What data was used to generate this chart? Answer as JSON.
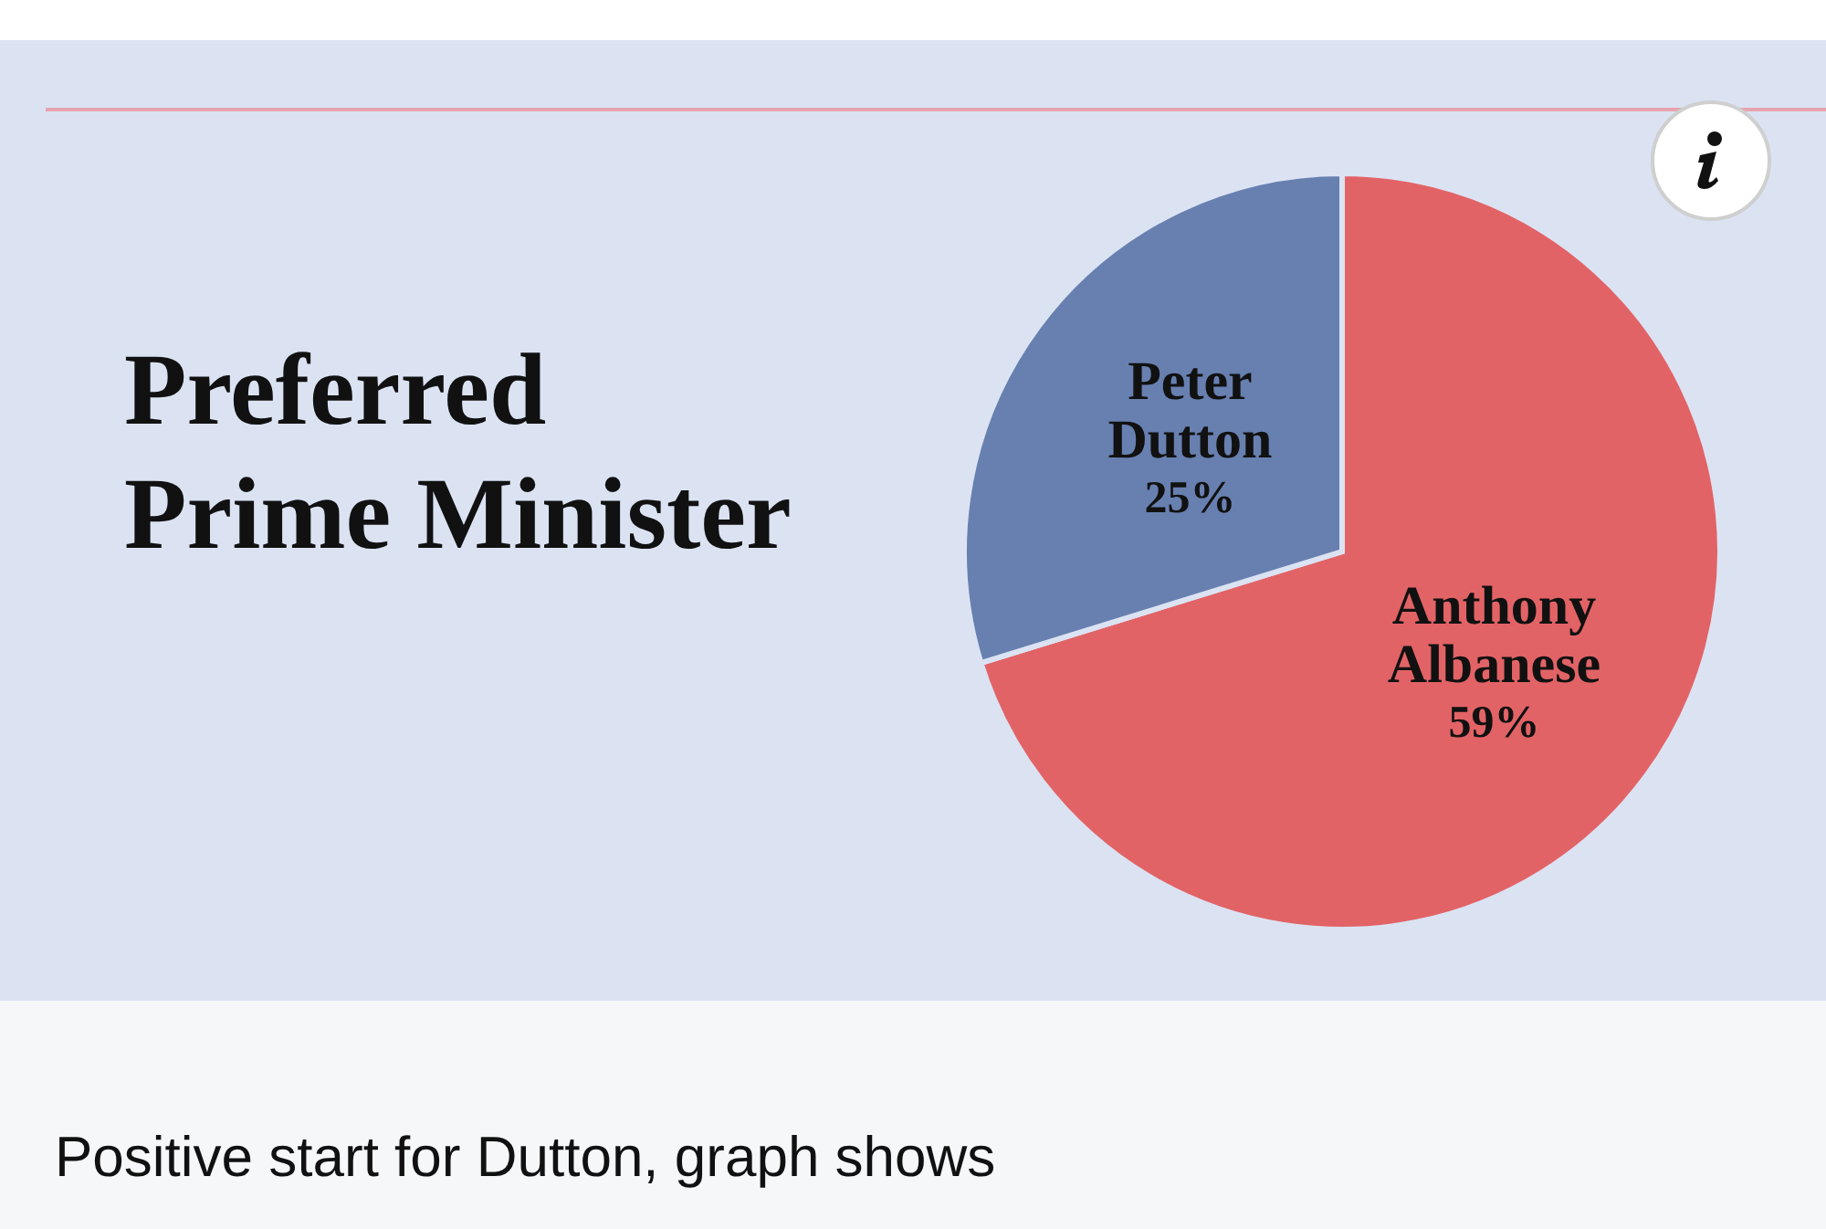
{
  "chart_data": {
    "type": "pie",
    "title": "Preferred Prime Minister",
    "categories": [
      "Anthony Albanese",
      "Peter Dutton"
    ],
    "values": [
      59,
      25
    ],
    "value_labels": [
      "59%",
      "25%"
    ],
    "colors": [
      "#e26366",
      "#6880b0"
    ],
    "annotations": [
      "Positive start for Dutton, graph shows"
    ]
  }
}
